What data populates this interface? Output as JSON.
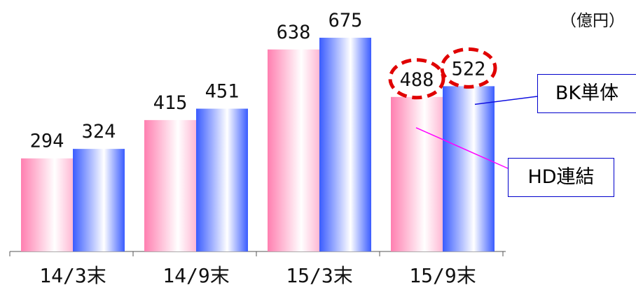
{
  "unit_label": "（億円）",
  "callouts": {
    "bk": "BK単体",
    "hd": "HD連結"
  },
  "colors": {
    "hd": "#ff7fb0",
    "bk": "#3a5cff",
    "highlight": "#e00000",
    "axis": "#555555",
    "bk_leader": "#1010e0",
    "hd_leader": "#ff00ff"
  },
  "chart_data": {
    "type": "bar",
    "title": "",
    "xlabel": "",
    "ylabel": "",
    "categories": [
      "14/3末",
      "14/9末",
      "15/3末",
      "15/9末"
    ],
    "series": [
      {
        "name": "HD連結",
        "values": [
          294,
          415,
          638,
          488
        ]
      },
      {
        "name": "BK単体",
        "values": [
          324,
          451,
          675,
          522
        ]
      }
    ],
    "highlighted": {
      "category": "15/9末",
      "series": [
        "HD連結",
        "BK単体"
      ]
    },
    "legend": "callouts-right",
    "grid": false
  }
}
